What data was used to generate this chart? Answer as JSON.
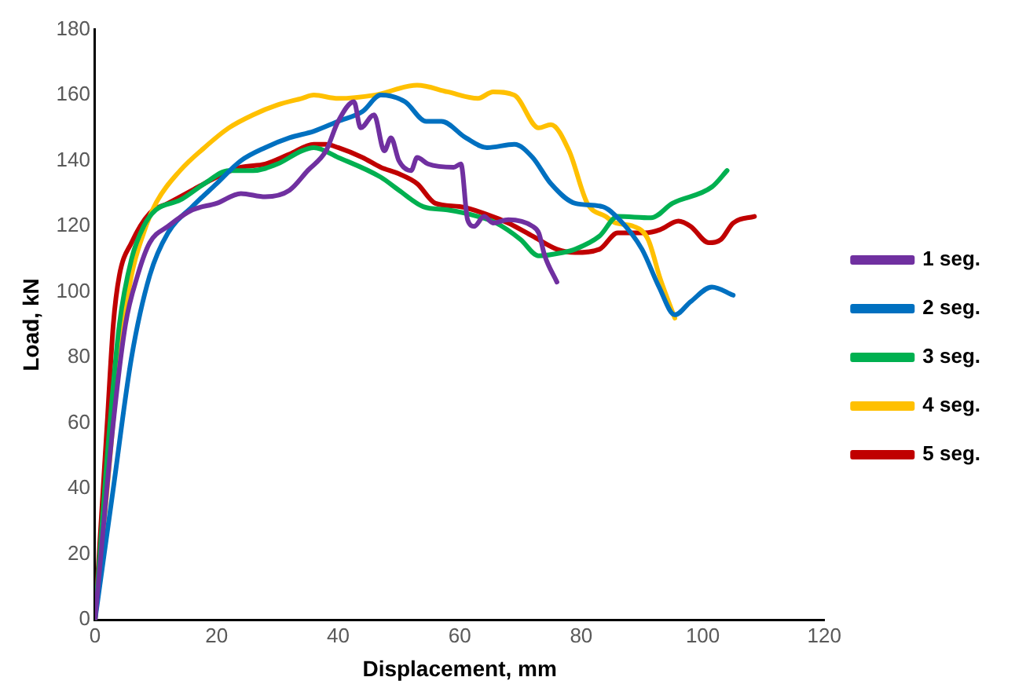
{
  "chart_data": {
    "type": "line",
    "xlabel": "Displacement, mm",
    "ylabel": "Load, kN",
    "xlim": [
      0,
      120
    ],
    "xticks": [
      0,
      20,
      40,
      60,
      80,
      100,
      120
    ],
    "ylim": [
      0,
      180
    ],
    "yticks": [
      0,
      20,
      40,
      60,
      80,
      100,
      120,
      140,
      160,
      180
    ],
    "grid": false,
    "legend": "right",
    "marker": "none",
    "line_style": "solid",
    "series": [
      {
        "name": "1 seg.",
        "color": "#7030a0",
        "x": [
          0,
          3,
          5,
          7,
          9,
          12,
          16,
          20,
          24,
          28,
          32,
          35,
          38,
          40,
          42.6,
          43.7,
          45.9,
          47.6,
          48.7,
          50,
          52,
          53,
          54.8,
          59,
          60.2,
          61.3,
          62.4,
          64,
          65.5,
          68,
          72,
          73,
          74,
          76
        ],
        "values": [
          0,
          60,
          90,
          105,
          115,
          120,
          125,
          127,
          130,
          129,
          131,
          137,
          143,
          152,
          158,
          150,
          154,
          143,
          147,
          140,
          137,
          141,
          139,
          138,
          139,
          122,
          120,
          123,
          121,
          122,
          120,
          118,
          111,
          103
        ]
      },
      {
        "name": "2 seg.",
        "color": "#0070c0",
        "x": [
          0,
          3,
          6,
          9,
          12,
          16,
          20,
          24,
          28,
          32,
          36,
          40,
          44,
          47,
          51,
          54.5,
          57,
          61,
          64.5,
          69,
          72,
          75,
          79,
          83.5,
          86.3,
          90,
          92.8,
          95.4,
          98,
          101.5,
          105
        ],
        "values": [
          0,
          40,
          80,
          105,
          118,
          126,
          133,
          140,
          144,
          147,
          149,
          152,
          155,
          160,
          158,
          152,
          152,
          147,
          144,
          145,
          141,
          133,
          127,
          126,
          122,
          113,
          101.5,
          93,
          97,
          101.5,
          99
        ]
      },
      {
        "name": "3 seg.",
        "color": "#00b050",
        "x": [
          0,
          2,
          4,
          6,
          8,
          10,
          14,
          18,
          22,
          26,
          30,
          34,
          36,
          40,
          47,
          50,
          54,
          58,
          63,
          66,
          70,
          73,
          77,
          79,
          83,
          86,
          91.5,
          95,
          101.5,
          104
        ],
        "values": [
          0,
          50,
          90,
          110,
          120,
          125,
          128,
          133,
          137,
          137,
          139,
          143,
          144,
          141,
          135,
          131,
          126,
          125,
          123,
          121,
          116,
          111,
          112,
          113,
          117,
          123,
          122.6,
          127,
          132,
          137
        ]
      },
      {
        "name": "4 seg.",
        "color": "#ffc000",
        "x": [
          0,
          2,
          4,
          6,
          8,
          10,
          14,
          18,
          22,
          26,
          30,
          34,
          36,
          40,
          46,
          53,
          58,
          63,
          65.5,
          69,
          73,
          75,
          78,
          81,
          84,
          85.7,
          88.6,
          91,
          93,
          95.4
        ],
        "values": [
          0,
          40,
          80,
          105,
          118,
          127,
          137,
          144,
          150,
          154,
          157,
          159,
          160,
          159,
          160,
          163,
          161,
          159,
          161,
          160,
          150,
          151,
          143,
          127,
          123,
          121,
          120,
          116,
          104,
          92
        ]
      },
      {
        "name": "5 seg.",
        "color": "#c00000",
        "x": [
          0,
          0.5,
          2,
          3,
          4,
          6,
          9,
          12,
          16,
          20,
          24,
          28,
          32,
          36,
          38,
          40,
          44,
          47,
          50,
          53,
          56,
          60,
          64.5,
          68,
          72,
          76,
          79,
          83,
          86,
          90.5,
          93,
          96,
          98,
          101,
          103,
          105,
          108.5
        ],
        "values": [
          0,
          15,
          60,
          90,
          105,
          115,
          124,
          127,
          131,
          135,
          138,
          139,
          142,
          145,
          145,
          144,
          141,
          138,
          136,
          133,
          127,
          126,
          123.6,
          121,
          117,
          113,
          112,
          113,
          118,
          118,
          119,
          121.6,
          120,
          115,
          116,
          121,
          123
        ]
      }
    ]
  }
}
